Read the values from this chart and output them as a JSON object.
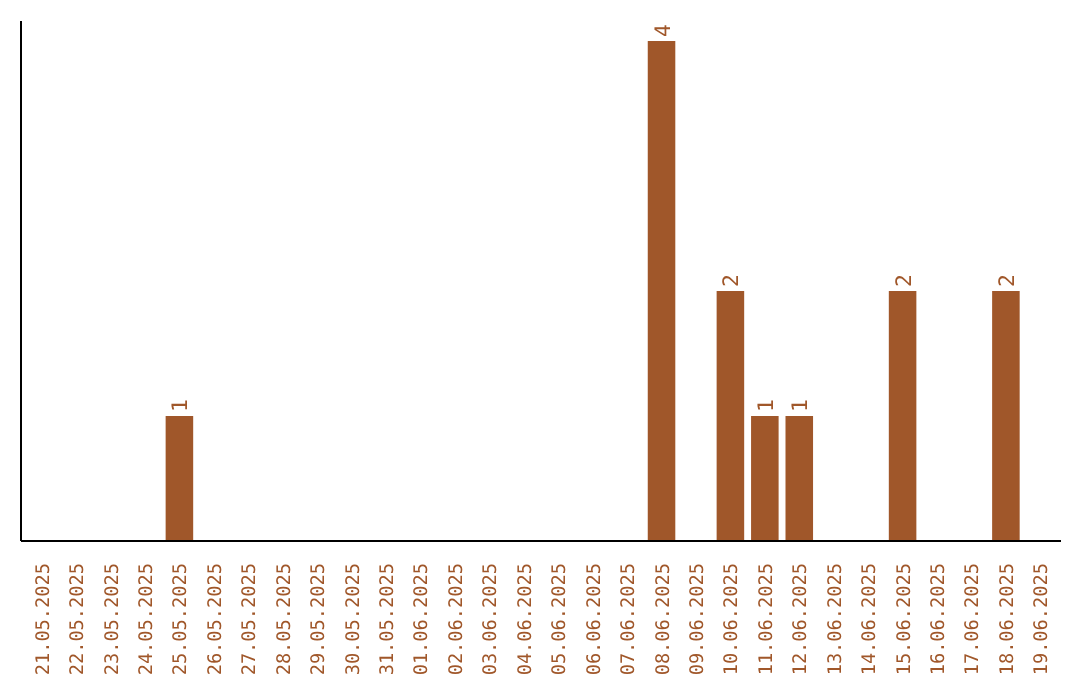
{
  "chart_data": {
    "type": "bar",
    "categories": [
      "21.05.2025",
      "22.05.2025",
      "23.05.2025",
      "24.05.2025",
      "25.05.2025",
      "26.05.2025",
      "27.05.2025",
      "28.05.2025",
      "29.05.2025",
      "30.05.2025",
      "31.05.2025",
      "01.06.2025",
      "02.06.2025",
      "03.06.2025",
      "04.06.2025",
      "05.06.2025",
      "06.06.2025",
      "07.06.2025",
      "08.06.2025",
      "09.06.2025",
      "10.06.2025",
      "11.06.2025",
      "12.06.2025",
      "13.06.2025",
      "14.06.2025",
      "15.06.2025",
      "16.06.2025",
      "17.06.2025",
      "18.06.2025",
      "19.06.2025"
    ],
    "values": [
      0,
      0,
      0,
      0,
      1,
      0,
      0,
      0,
      0,
      0,
      0,
      0,
      0,
      0,
      0,
      0,
      0,
      0,
      4,
      0,
      2,
      1,
      1,
      0,
      0,
      2,
      0,
      0,
      2,
      0
    ],
    "value_labels": [
      null,
      null,
      null,
      null,
      "1",
      null,
      null,
      null,
      null,
      null,
      null,
      null,
      null,
      null,
      null,
      null,
      null,
      null,
      "4",
      null,
      "2",
      "1",
      "1",
      null,
      null,
      "2",
      null,
      null,
      "2",
      null
    ],
    "color": "#a0572a",
    "grid": false,
    "tick_labels": "x"
  }
}
